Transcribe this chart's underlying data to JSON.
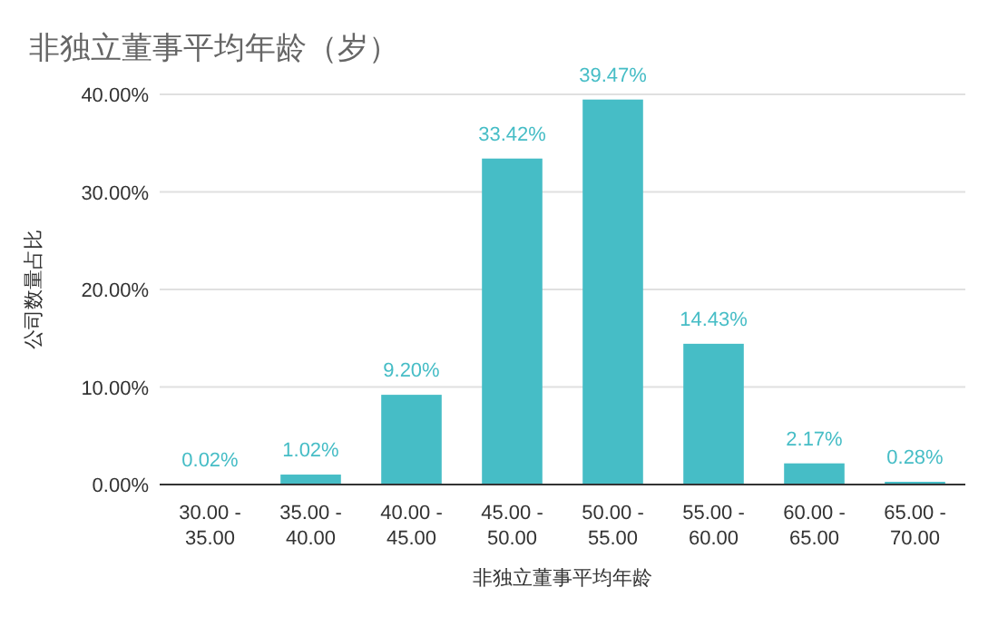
{
  "chart_data": {
    "type": "bar",
    "title": "非独立董事平均年龄（岁）",
    "xlabel": "非独立董事平均年龄",
    "ylabel": "公司数量占比",
    "categories": [
      "30.00 - 35.00",
      "35.00 - 40.00",
      "40.00 - 45.00",
      "45.00 - 50.00",
      "50.00 - 55.00",
      "55.00 - 60.00",
      "60.00 - 65.00",
      "65.00 - 70.00"
    ],
    "values": [
      0.02,
      1.02,
      9.2,
      33.42,
      39.47,
      14.43,
      2.17,
      0.28
    ],
    "value_labels": [
      "0.02%",
      "1.02%",
      "9.20%",
      "33.42%",
      "39.47%",
      "14.43%",
      "2.17%",
      "0.28%"
    ],
    "color": "#46bdc6",
    "ylim": [
      0,
      40
    ],
    "yticks": [
      {
        "value": 0,
        "label": "0.00%"
      },
      {
        "value": 10,
        "label": "10.00%"
      },
      {
        "value": 20,
        "label": "20.00%"
      },
      {
        "value": 30,
        "label": "30.00%"
      },
      {
        "value": 40,
        "label": "40.00%"
      }
    ],
    "grid": "y"
  }
}
